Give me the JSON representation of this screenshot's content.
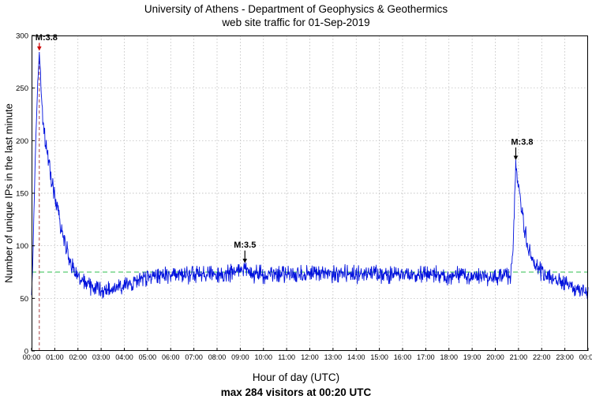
{
  "chart_data": {
    "type": "line",
    "title": "University of Athens - Department of Geophysics & Geothermics",
    "subtitle": "web site traffic for 01-Sep-2019",
    "xlabel": "Hour of day (UTC)",
    "ylabel": "Number of unique IPs in the last minute",
    "footer": "max 284 visitors at 00:20 UTC",
    "ylim": [
      0,
      300
    ],
    "yticks": [
      0,
      50,
      100,
      150,
      200,
      250,
      300
    ],
    "xtick_minutes": [
      0,
      60,
      120,
      180,
      240,
      300,
      360,
      420,
      480,
      540,
      600,
      660,
      720,
      780,
      840,
      900,
      960,
      1020,
      1080,
      1140,
      1200,
      1260,
      1320,
      1380,
      1440
    ],
    "xtick_labels": [
      "00:00",
      "01:00",
      "02:00",
      "03:00",
      "04:00",
      "05:00",
      "06:00",
      "07:00",
      "08:00",
      "09:00",
      "10:00",
      "11:00",
      "12:00",
      "13:00",
      "14:00",
      "15:00",
      "16:00",
      "17:00",
      "18:00",
      "19:00",
      "20:00",
      "21:00",
      "22:00",
      "23:00",
      "00:00"
    ],
    "grid": true,
    "legend": "none",
    "series": [
      {
        "name": "unique IPs per minute",
        "color": "#0011dd",
        "noise_amplitude": 5.5,
        "max_clamp": 284,
        "keypoints": [
          [
            0,
            52
          ],
          [
            4,
            95
          ],
          [
            8,
            160
          ],
          [
            12,
            215
          ],
          [
            16,
            255
          ],
          [
            20,
            284
          ],
          [
            23,
            262
          ],
          [
            26,
            240
          ],
          [
            30,
            218
          ],
          [
            36,
            198
          ],
          [
            42,
            183
          ],
          [
            48,
            170
          ],
          [
            54,
            158
          ],
          [
            60,
            148
          ],
          [
            68,
            132
          ],
          [
            76,
            118
          ],
          [
            84,
            105
          ],
          [
            92,
            95
          ],
          [
            100,
            86
          ],
          [
            110,
            78
          ],
          [
            120,
            70
          ],
          [
            135,
            65
          ],
          [
            150,
            62
          ],
          [
            165,
            60
          ],
          [
            180,
            58
          ],
          [
            200,
            58
          ],
          [
            220,
            59
          ],
          [
            240,
            61
          ],
          [
            260,
            64
          ],
          [
            280,
            68
          ],
          [
            300,
            70
          ],
          [
            330,
            72
          ],
          [
            360,
            72
          ],
          [
            400,
            73
          ],
          [
            440,
            73
          ],
          [
            480,
            73
          ],
          [
            520,
            74
          ],
          [
            552,
            78
          ],
          [
            570,
            74
          ],
          [
            600,
            73
          ],
          [
            640,
            74
          ],
          [
            680,
            73
          ],
          [
            720,
            74
          ],
          [
            760,
            73
          ],
          [
            800,
            74
          ],
          [
            840,
            73
          ],
          [
            880,
            74
          ],
          [
            920,
            72
          ],
          [
            960,
            73
          ],
          [
            1000,
            72
          ],
          [
            1040,
            73
          ],
          [
            1080,
            72
          ],
          [
            1120,
            71
          ],
          [
            1160,
            70
          ],
          [
            1200,
            70
          ],
          [
            1225,
            71
          ],
          [
            1240,
            72
          ],
          [
            1246,
            92
          ],
          [
            1250,
            142
          ],
          [
            1253,
            178
          ],
          [
            1257,
            167
          ],
          [
            1262,
            154
          ],
          [
            1268,
            136
          ],
          [
            1275,
            116
          ],
          [
            1285,
            99
          ],
          [
            1295,
            87
          ],
          [
            1310,
            78
          ],
          [
            1330,
            72
          ],
          [
            1360,
            67
          ],
          [
            1390,
            63
          ],
          [
            1415,
            58
          ],
          [
            1440,
            54
          ]
        ]
      }
    ],
    "reference_lines": [
      {
        "type": "vertical",
        "x_minute": 20,
        "to_value": 284,
        "color": "#aa4444",
        "dash": "4,3"
      },
      {
        "type": "horizontal",
        "y": 75,
        "color": "#2fbf4f",
        "dash": "6,4"
      }
    ],
    "annotations": [
      {
        "label": "M:3.8",
        "minute": 20,
        "value": 284,
        "arrow_len": 10,
        "arrow_color": "#cc0000",
        "text_anchor": "start",
        "text_dx": -5
      },
      {
        "label": "M:3.5",
        "minute": 552,
        "value": 82,
        "arrow_len": 16,
        "arrow_color": "#000000",
        "text_anchor": "middle",
        "text_dx": 0
      },
      {
        "label": "M:3.8",
        "minute": 1253,
        "value": 180,
        "arrow_len": 16,
        "arrow_color": "#000000",
        "text_anchor": "middle",
        "text_dx": 8
      }
    ],
    "max_point": {
      "value": 284,
      "time": "00:20"
    }
  }
}
